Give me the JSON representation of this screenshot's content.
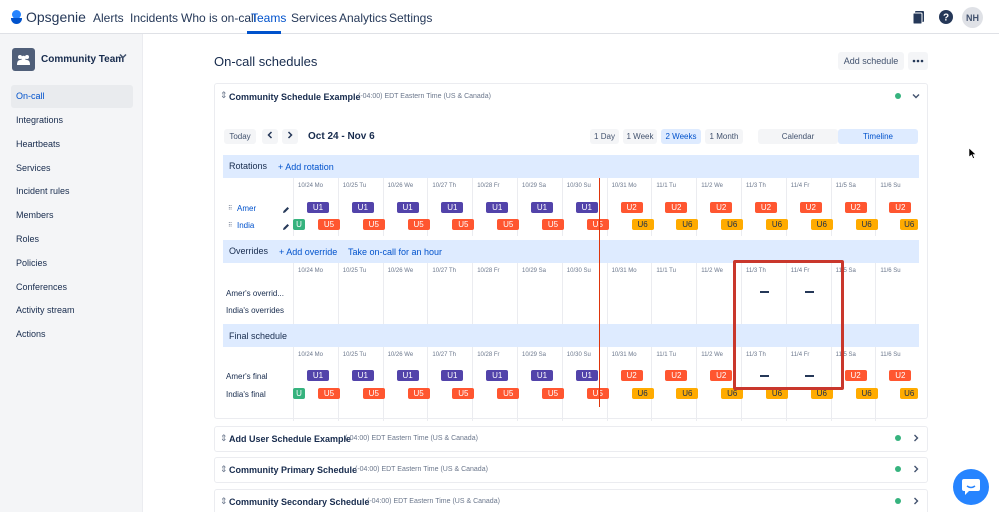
{
  "app": {
    "name": "Opsgenie",
    "user_initials": "NH"
  },
  "nav": {
    "items": [
      "Alerts",
      "Incidents",
      "Who is on-call",
      "Teams",
      "Services",
      "Analytics",
      "Settings"
    ],
    "active": "Teams"
  },
  "sidebar": {
    "team": "Community Team",
    "items": [
      "On-call",
      "Integrations",
      "Heartbeats",
      "Services",
      "Incident rules",
      "Members",
      "Roles",
      "Policies",
      "Conferences",
      "Activity stream",
      "Actions"
    ],
    "active": "On-call"
  },
  "main": {
    "title": "On-call schedules",
    "add_schedule": "Add schedule",
    "expanded": {
      "name": "Community Schedule Example",
      "tz": "(-04:00) EDT Eastern Time (US & Canada)",
      "toolbar": {
        "today": "Today",
        "range": "Oct 24 - Nov 6",
        "views": [
          "1 Day",
          "1 Week",
          "2 Weeks",
          "1 Month"
        ],
        "active_view": "2 Weeks",
        "modes": [
          "Calendar",
          "Timeline"
        ],
        "active_mode": "Timeline"
      },
      "dates": [
        "10/24 Mo",
        "10/25 Tu",
        "10/26 We",
        "10/27 Th",
        "10/28 Fr",
        "10/29 Sa",
        "10/30 Su",
        "10/31 Mo",
        "11/1 Tu",
        "11/2 We",
        "11/3 Th",
        "11/4 Fr",
        "11/5 Sa",
        "11/6 Su"
      ],
      "rotations": {
        "title": "Rotations",
        "add": "+ Add rotation",
        "rows": [
          {
            "name": "Amer",
            "chips": [
              "U1",
              "U1",
              "U1",
              "U1",
              "U1",
              "U1",
              "U1",
              "U2",
              "U2",
              "U2",
              "U2",
              "U2",
              "U2",
              "U2"
            ],
            "colors": [
              "purple",
              "purple",
              "purple",
              "purple",
              "purple",
              "purple",
              "purple",
              "red",
              "red",
              "red",
              "red",
              "red",
              "red",
              "red"
            ]
          },
          {
            "name": "India",
            "chips": [
              "U",
              "U5",
              "U5",
              "U5",
              "U5",
              "U5",
              "U5",
              "U5",
              "U6",
              "U6",
              "U6",
              "U6",
              "U6",
              "U6",
              "U6"
            ],
            "colors": [
              "green",
              "red",
              "red",
              "red",
              "red",
              "red",
              "red",
              "red",
              "orange",
              "orange",
              "orange",
              "orange",
              "orange",
              "orange",
              "orange"
            ]
          }
        ]
      },
      "overrides": {
        "title": "Overrides",
        "add": "+ Add override",
        "take": "Take on-call for an hour",
        "rows": [
          "Amer's overrid...",
          "India's overrides"
        ]
      },
      "final": {
        "title": "Final schedule",
        "rows": [
          {
            "name": "Amer's final",
            "chips": [
              "U1",
              "U1",
              "U1",
              "U1",
              "U1",
              "U1",
              "U1",
              "U2",
              "U2",
              "U2",
              "",
              "",
              "U2",
              "U2"
            ],
            "colors": [
              "purple",
              "purple",
              "purple",
              "purple",
              "purple",
              "purple",
              "purple",
              "red",
              "red",
              "red",
              "",
              "",
              "red",
              "red"
            ]
          },
          {
            "name": "India's final",
            "chips": [
              "U",
              "U5",
              "U5",
              "U5",
              "U5",
              "U5",
              "U5",
              "U5",
              "U6",
              "U6",
              "U6",
              "U6",
              "U6",
              "U6",
              "U6"
            ],
            "colors": [
              "green",
              "red",
              "red",
              "red",
              "red",
              "red",
              "red",
              "red",
              "orange",
              "orange",
              "orange",
              "orange",
              "orange",
              "orange",
              "orange"
            ]
          }
        ]
      }
    },
    "collapsed": [
      {
        "name": "Add User Schedule Example",
        "tz": "(-04:00) EDT Eastern Time (US & Canada)"
      },
      {
        "name": "Community Primary Schedule",
        "tz": "(-04:00) EDT Eastern Time (US & Canada)"
      },
      {
        "name": "Community Secondary Schedule",
        "tz": "(-04:00) EDT Eastern Time (US & Canada)"
      }
    ]
  },
  "colors": {
    "purple": "#5243aa",
    "red": "#ff5630",
    "green": "#36b37e",
    "orange": "#ffab00",
    "accent": "#0052cc",
    "highlight_box": "#c9372c"
  }
}
